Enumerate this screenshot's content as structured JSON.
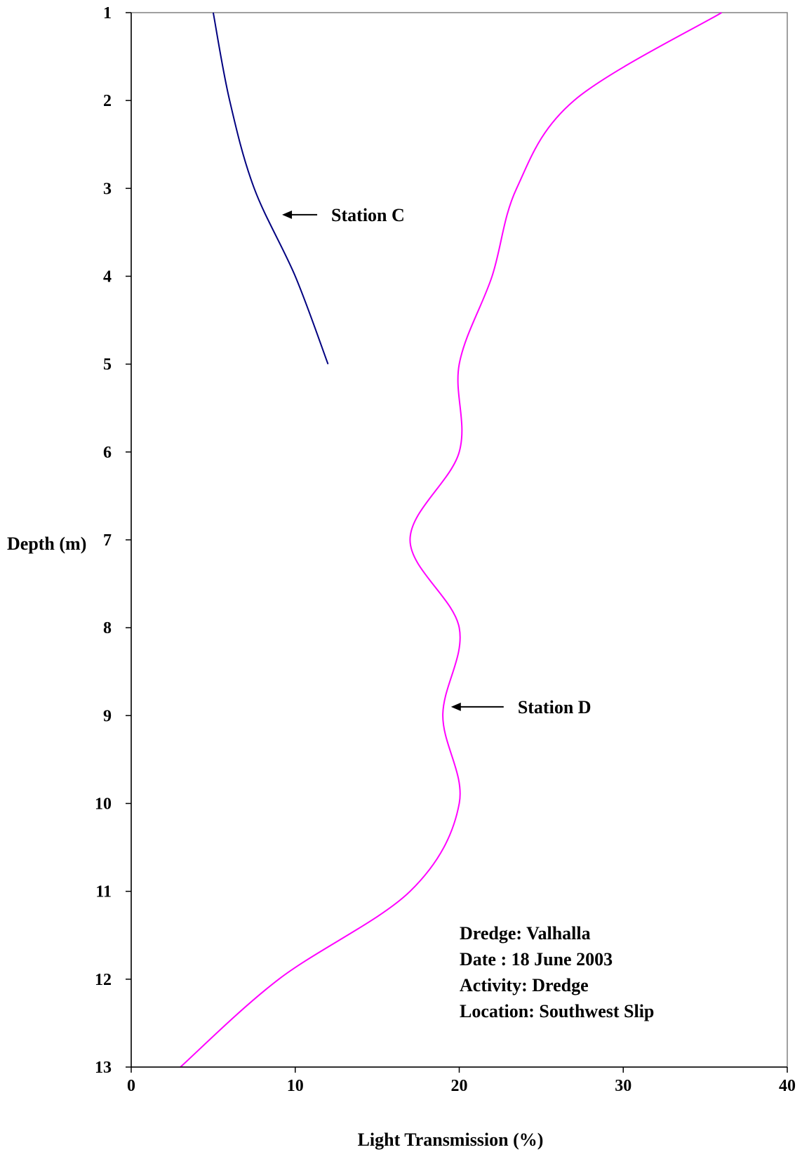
{
  "chart_data": {
    "type": "line",
    "xlabel": "Light Transmission (%)",
    "ylabel": "Depth (m)",
    "xlim": [
      0,
      40
    ],
    "ylim": [
      1,
      13
    ],
    "y_reversed": true,
    "x_ticks": [
      0,
      10,
      20,
      30,
      40
    ],
    "y_ticks": [
      1,
      2,
      3,
      4,
      5,
      6,
      7,
      8,
      9,
      10,
      11,
      12,
      13
    ],
    "grid": false,
    "series": [
      {
        "name": "Station C",
        "color": "#000080",
        "points": [
          [
            5,
            1
          ],
          [
            6,
            2
          ],
          [
            7.5,
            3
          ],
          [
            10,
            4
          ],
          [
            12,
            5
          ]
        ]
      },
      {
        "name": "Station D",
        "color": "#ff00ff",
        "points": [
          [
            36,
            1
          ],
          [
            27,
            2
          ],
          [
            23.5,
            3
          ],
          [
            22,
            4
          ],
          [
            20,
            5
          ],
          [
            20,
            6
          ],
          [
            17,
            7
          ],
          [
            20,
            8
          ],
          [
            19,
            9
          ],
          [
            20,
            10
          ],
          [
            17,
            11
          ],
          [
            9,
            12
          ],
          [
            3,
            13
          ]
        ]
      }
    ],
    "annotations": [
      {
        "text": "Station C",
        "arrow_to": [
          9.2,
          3.3
        ]
      },
      {
        "text": "Station D",
        "arrow_to": [
          19.5,
          8.9
        ]
      }
    ],
    "info_box": [
      "Dredge: Valhalla",
      "Date : 18 June 2003",
      "Activity: Dredge",
      "Location: Southwest Slip"
    ]
  }
}
